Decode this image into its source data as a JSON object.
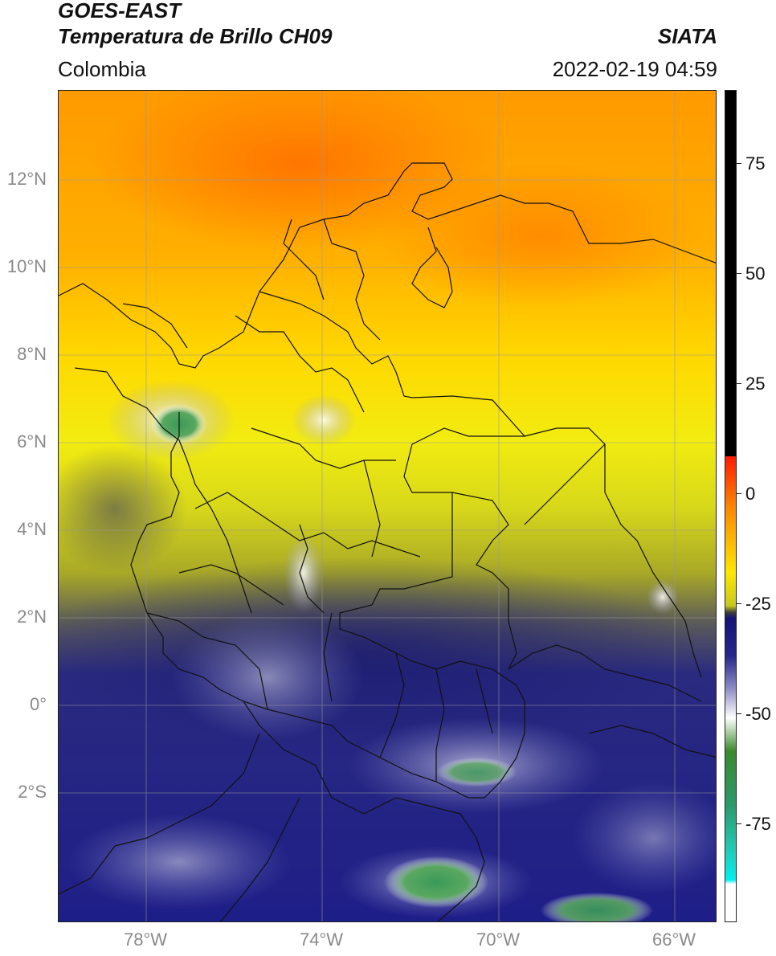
{
  "header": {
    "satellite": "GOES-EAST",
    "product": "Temperatura de Brillo CH09",
    "organization": "SIATA",
    "region": "Colombia",
    "datetime": "2022-02-19 04:59"
  },
  "map": {
    "lat_ticks": [
      "12°N",
      "10°N",
      "8°N",
      "6°N",
      "4°N",
      "2°N",
      "0°",
      "2°S"
    ],
    "lon_ticks": [
      "78°W",
      "74°W",
      "70°W",
      "66°W"
    ],
    "grid": true
  },
  "colorbar": {
    "tick_labels": [
      "75",
      "50",
      "25",
      "0",
      "-25",
      "-50",
      "-75"
    ],
    "colors": {
      "hot": "#000000",
      "warm": "#ff8c00",
      "mild": "#ffe600",
      "cool": "#141478",
      "cold": "#ffffff",
      "very_cold": "#3a8a2c",
      "extreme": "#00f0f0"
    }
  }
}
